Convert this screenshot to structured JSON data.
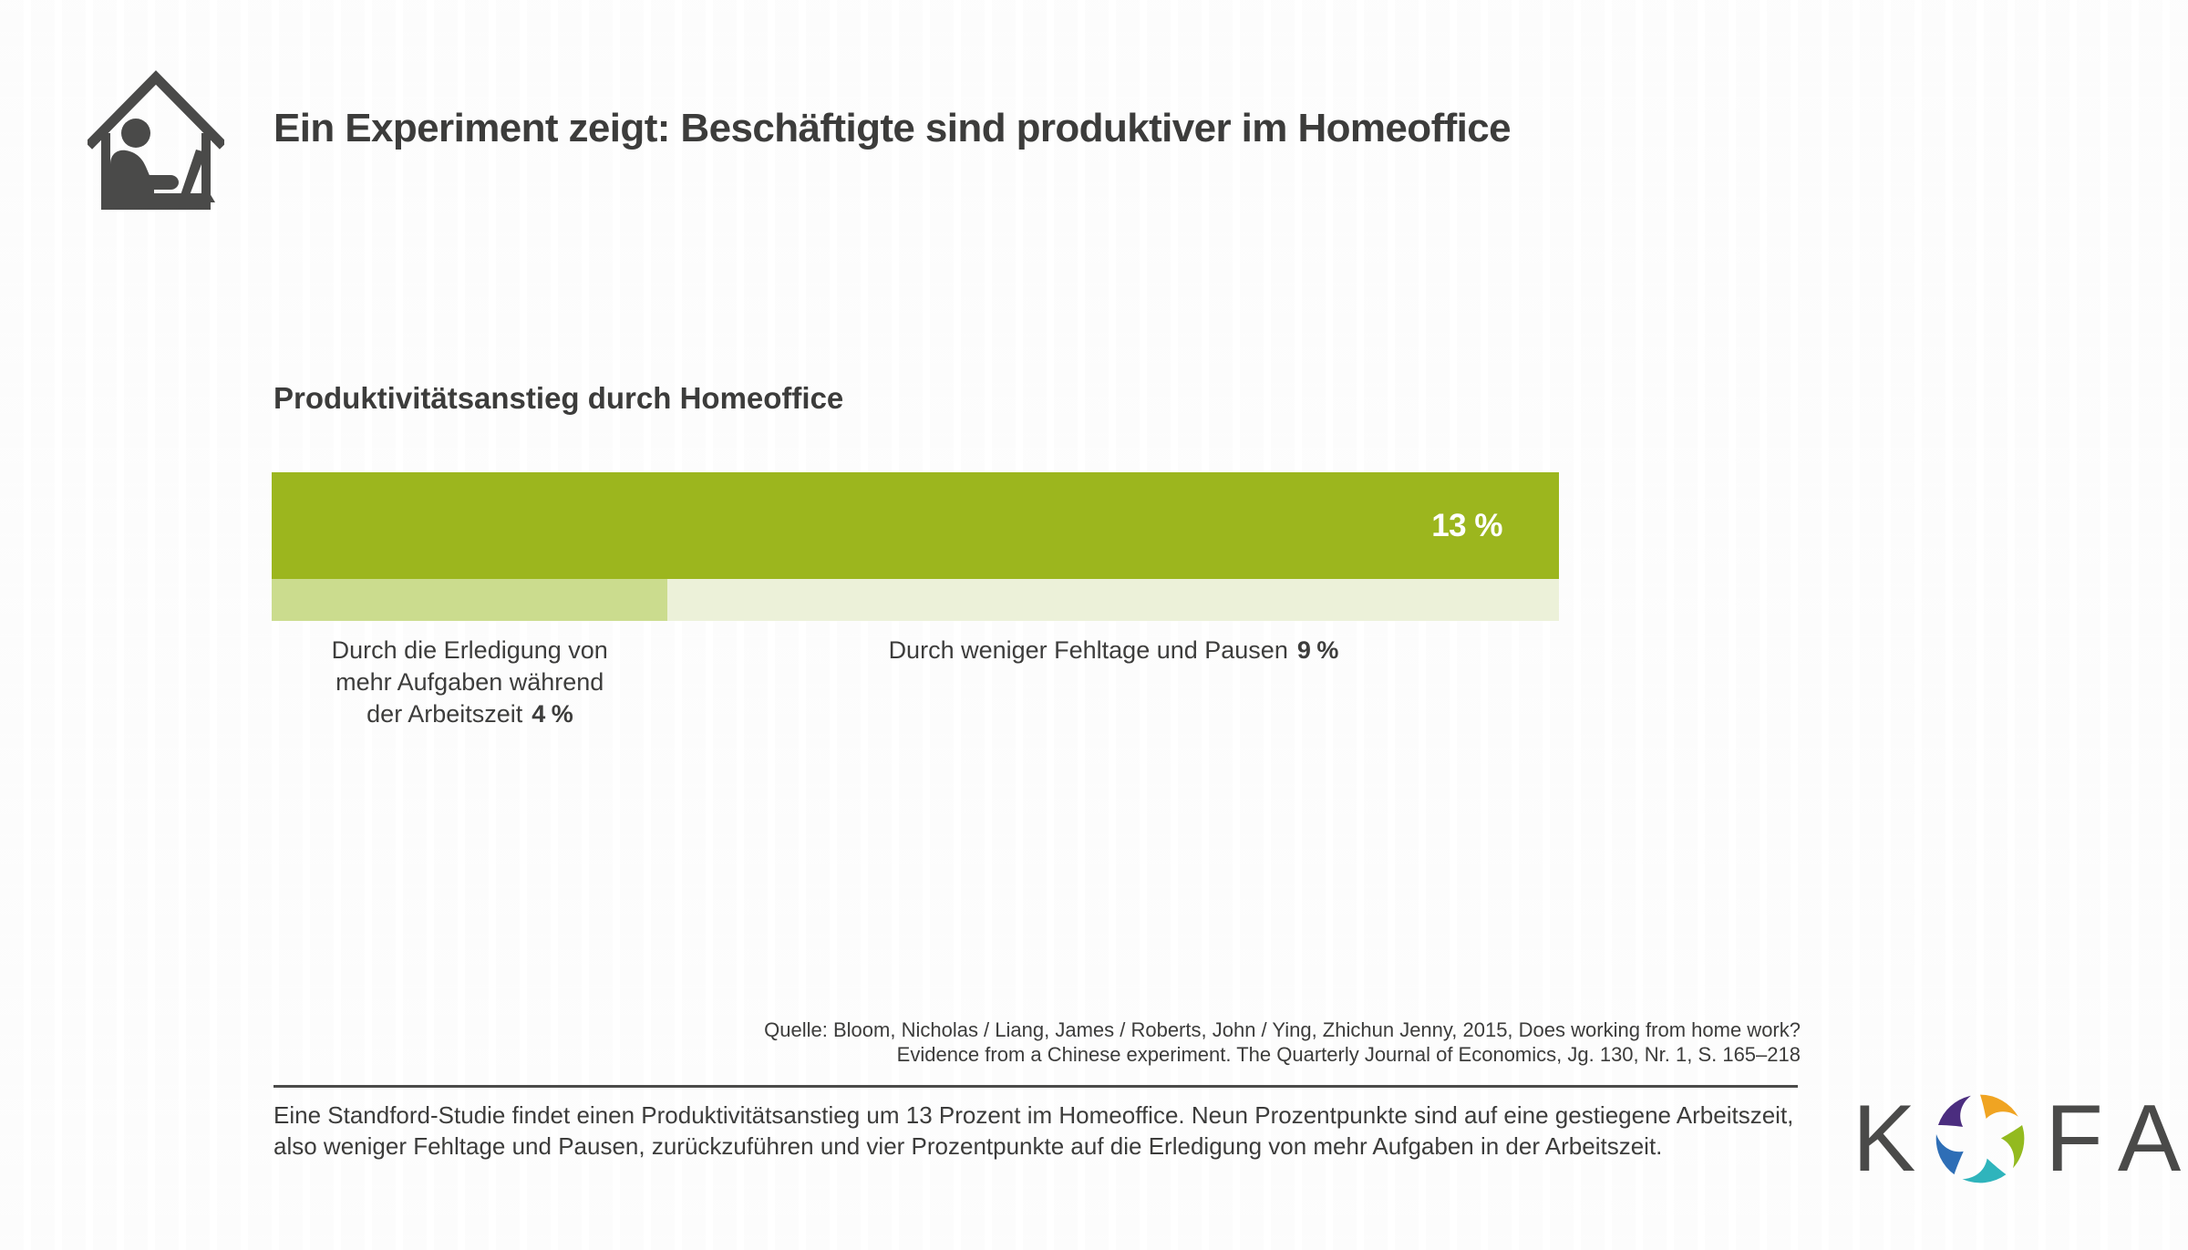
{
  "header": {
    "title": "Ein Experiment zeigt: Beschäftigte sind produktiver im Homeoffice",
    "icon": "person-working-at-laptop-in-house"
  },
  "chart": {
    "title": "Produktivitätsanstieg durch Homeoffice",
    "total_value_label": "13 %",
    "colors": {
      "total_bar": "#9cb61e",
      "segment_tasks": "#cbdc8e",
      "segment_absence": "#ecf1d9"
    },
    "left_label": {
      "line1": "Durch die Erledigung von",
      "line2": "mehr Aufgaben während",
      "line3": "der Arbeitszeit",
      "value": "4 %"
    },
    "right_label": {
      "text": "Durch weniger Fehltage und Pausen",
      "value": "9 %"
    }
  },
  "chart_data": {
    "type": "bar",
    "orientation": "horizontal",
    "title": "Produktivitätsanstieg durch Homeoffice",
    "unit": "%",
    "xlim": [
      0,
      13
    ],
    "grid": false,
    "legend": false,
    "total": {
      "label": "Produktivitätsanstieg durch Homeoffice gesamt",
      "value": 13
    },
    "segments": [
      {
        "category": "Durch die Erledigung von mehr Aufgaben während der Arbeitszeit",
        "value": 4
      },
      {
        "category": "Durch weniger Fehltage und Pausen",
        "value": 9
      }
    ]
  },
  "source": {
    "line1": "Quelle: Bloom, Nicholas / Liang, James / Roberts, John / Ying, Zhichun Jenny, 2015, Does working from home work?",
    "line2": "Evidence from a Chinese experiment. The Quarterly Journal of Economics, Jg. 130, Nr. 1, S. 165–218"
  },
  "footer": {
    "description_line1": "Eine Standford-Studie findet einen Produktivitätsanstieg um 13 Prozent im Homeoffice. Neun Prozentpunkte sind auf eine gestiegene Arbeitszeit,",
    "description_line2": "also weniger Fehltage und Pausen, zurückzuführen und vier Prozentpunkte auf die Erledigung von mehr Aufgaben in der Arbeitszeit.",
    "logo": {
      "k": "K",
      "f": "F",
      "a": "A",
      "swirl_colors": [
        "#f0a422",
        "#93ba1f",
        "#2fb4bc",
        "#2e6eb6",
        "#4b2d7f"
      ]
    }
  },
  "colors": {
    "text_dark": "#3c3c3b",
    "icon_gray": "#4a4a49",
    "divider_gray": "#4b4b4a"
  }
}
